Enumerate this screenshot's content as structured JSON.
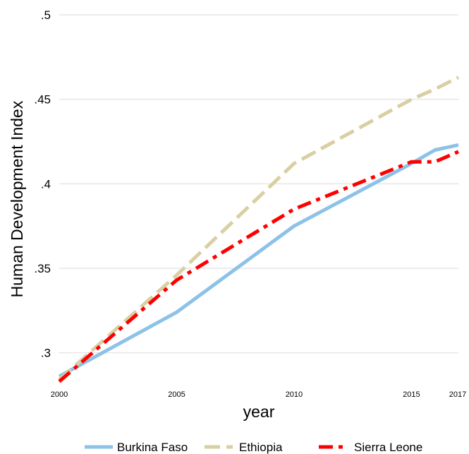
{
  "chart_data": {
    "type": "line",
    "title": "",
    "xlabel": "year",
    "ylabel": "Human Development Index",
    "x_ticks": [
      2000,
      2005,
      2010,
      2015,
      2017
    ],
    "x_tick_labels": [
      "2000",
      "2005",
      "2010",
      "2015",
      "2017"
    ],
    "y_ticks": [
      0.3,
      0.35,
      0.4,
      0.45,
      0.5
    ],
    "y_tick_labels": [
      ".3",
      ".35",
      ".4",
      ".45",
      ".5"
    ],
    "xlim": [
      2000,
      2017
    ],
    "ylim": [
      0.2823,
      0.5
    ],
    "grid": "horizontal",
    "legend_position": "bottom",
    "series": [
      {
        "name": "Burkina Faso",
        "color": "#8dc2e8",
        "style": "solid",
        "x": [
          2000,
          2005,
          2010,
          2015,
          2016,
          2017
        ],
        "y": [
          0.286,
          0.324,
          0.375,
          0.412,
          0.42,
          0.423
        ]
      },
      {
        "name": "Ethiopia",
        "color": "#d9cfa3",
        "style": "dash",
        "x": [
          2000,
          2005,
          2010,
          2015,
          2016,
          2017
        ],
        "y": [
          0.284,
          0.346,
          0.412,
          0.45,
          0.456,
          0.463
        ]
      },
      {
        "name": "Sierra Leone",
        "color": "#ff0000",
        "style": "dashdot",
        "x": [
          2000,
          2005,
          2010,
          2015,
          2016,
          2017
        ],
        "y": [
          0.283,
          0.343,
          0.385,
          0.413,
          0.413,
          0.419
        ]
      }
    ]
  }
}
